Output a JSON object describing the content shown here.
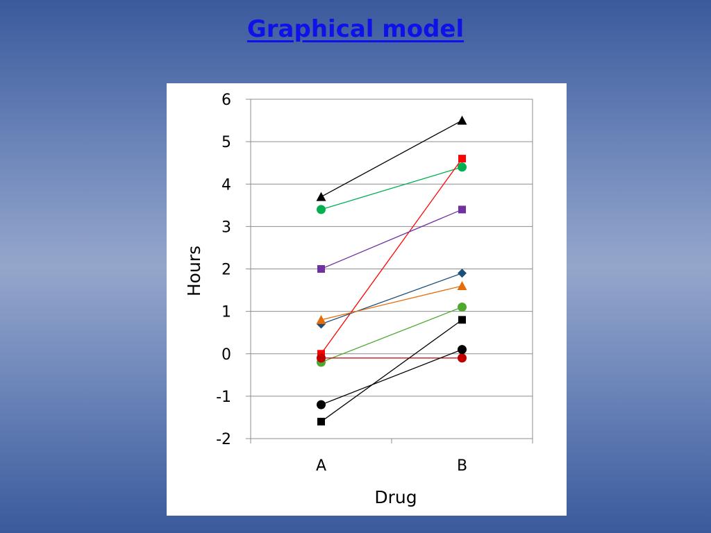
{
  "slide": {
    "title": "Graphical model"
  },
  "chart_data": {
    "type": "line",
    "xlabel": "Drug",
    "ylabel": "Hours",
    "categories": [
      "A",
      "B"
    ],
    "ylim": [
      -2,
      6
    ],
    "yticks": [
      6,
      5,
      4,
      3,
      2,
      1,
      0,
      -1,
      -2
    ],
    "grid": true,
    "legend": "none",
    "series": [
      {
        "values": [
          3.7,
          5.5
        ],
        "color": "#000000",
        "marker": "triangle"
      },
      {
        "values": [
          3.4,
          4.4
        ],
        "color": "#00b050",
        "marker": "circle"
      },
      {
        "values": [
          0.0,
          4.6
        ],
        "color": "#ff0000",
        "marker": "square"
      },
      {
        "values": [
          2.0,
          3.4
        ],
        "color": "#7030a0",
        "marker": "square"
      },
      {
        "values": [
          0.7,
          1.9
        ],
        "color": "#1f4e79",
        "marker": "diamond"
      },
      {
        "values": [
          0.8,
          1.6
        ],
        "color": "#e46c0a",
        "marker": "triangle"
      },
      {
        "values": [
          -0.2,
          1.1
        ],
        "color": "#4ea72e",
        "marker": "circle"
      },
      {
        "values": [
          -0.1,
          -0.1
        ],
        "color": "#c00000",
        "marker": "circle"
      },
      {
        "values": [
          -1.2,
          0.1
        ],
        "color": "#000000",
        "marker": "circle"
      },
      {
        "values": [
          -1.6,
          0.8
        ],
        "color": "#000000",
        "marker": "square"
      }
    ]
  }
}
